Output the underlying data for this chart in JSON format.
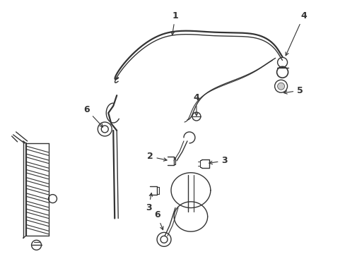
{
  "bg_color": "#ffffff",
  "line_color": "#333333",
  "lw": 1.0,
  "lw_thick": 1.6,
  "fs": 8,
  "fig_w": 4.89,
  "fig_h": 3.6,
  "dpi": 100
}
